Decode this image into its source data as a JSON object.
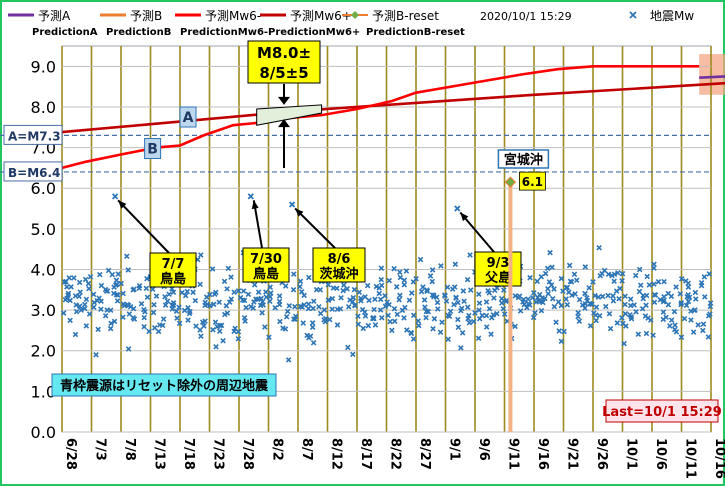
{
  "chart_data": {
    "type": "scatter",
    "x_start": "6/28",
    "x_ticks": [
      "6/28",
      "7/3",
      "7/8",
      "7/13",
      "7/18",
      "7/23",
      "7/28",
      "8/2",
      "8/7",
      "8/12",
      "8/17",
      "8/22",
      "8/27",
      "9/1",
      "9/6",
      "9/11",
      "9/16",
      "9/21",
      "9/26",
      "10/1",
      "10/6",
      "10/11",
      "10/16"
    ],
    "ylim": [
      0,
      9.5
    ],
    "y_ticks": [
      "0.0",
      "1.0",
      "2.0",
      "3.0",
      "4.0",
      "5.0",
      "6.0",
      "7.0",
      "8.0",
      "9.0"
    ],
    "legend": {
      "row1": [
        {
          "label": "予測A",
          "color": "#7030a0",
          "kind": "line"
        },
        {
          "label": "予測B",
          "color": "#ed7d31",
          "kind": "line"
        },
        {
          "label": "予測Mw6-",
          "color": "#ff0000",
          "kind": "line"
        },
        {
          "label": "予測Mw6+",
          "color": "#c00000",
          "kind": "line"
        },
        {
          "label": "予測B-reset",
          "color": "#ed7d31",
          "kind": "diamond"
        },
        {
          "label": "2020/10/1 15:29",
          "color": "",
          "kind": "text"
        },
        {
          "label": "地震Mw",
          "color": "#2e75b6",
          "kind": "cross"
        }
      ],
      "row2": [
        "PredictionA",
        "PredictionB",
        "PredictionMw6-",
        "PredictionMw6+",
        "PredictionB-reset"
      ]
    },
    "h_lines": [
      {
        "label": "A=M7.3",
        "value": 7.3
      },
      {
        "label": "B=M6.4",
        "value": 6.4
      }
    ],
    "series": [
      {
        "name": "予測Mw6+",
        "color": "#c00000",
        "points": [
          [
            0,
            7.38
          ],
          [
            40,
            7.9
          ],
          [
            80,
            8.3
          ],
          [
            120,
            8.65
          ],
          [
            135,
            8.75
          ]
        ]
      },
      {
        "name": "予測Mw6-",
        "color": "#ff0000",
        "points": [
          [
            0,
            6.5
          ],
          [
            4,
            6.65
          ],
          [
            10,
            6.83
          ],
          [
            16,
            7.0
          ],
          [
            20,
            7.05
          ],
          [
            24,
            7.3
          ],
          [
            29,
            7.55
          ],
          [
            34,
            7.62
          ],
          [
            38,
            7.72
          ],
          [
            44,
            7.8
          ],
          [
            50,
            7.95
          ],
          [
            56,
            8.15
          ],
          [
            60,
            8.35
          ],
          [
            66,
            8.5
          ],
          [
            72,
            8.65
          ],
          [
            78,
            8.8
          ],
          [
            84,
            8.93
          ],
          [
            90,
            9.0
          ],
          [
            108,
            9.0
          ]
        ]
      },
      {
        "name": "予測A",
        "color": "#7030a0",
        "points": [
          [
            108,
            8.72
          ],
          [
            135,
            8.92
          ]
        ]
      }
    ],
    "forecast_band": {
      "x": [
        108,
        135
      ],
      "low": 8.3,
      "high": 9.3
    },
    "b_reset": {
      "day": 76,
      "value": 6.15,
      "label": "6.1",
      "place": "宮城沖"
    },
    "annotations": {
      "m8_box": {
        "line1": "M8.0±",
        "line2": "8/5±5",
        "pointer_day": 39
      },
      "point_a": "A",
      "point_b": "B",
      "events": [
        {
          "date": "7/7",
          "place": "鳥島",
          "day": 9,
          "mag": 5.8
        },
        {
          "date": "7/30",
          "place": "鳥島",
          "day": 32,
          "mag": 5.8
        },
        {
          "date": "8/6",
          "place": "茨城沖",
          "day": 39,
          "mag": 5.6
        },
        {
          "date": "9/3",
          "place": "父島",
          "day": 67,
          "mag": 5.5
        }
      ],
      "note_bottom_left": "青枠震源はリセット除外の周辺地震",
      "last_update": "Last=10/1 15:29"
    },
    "scatter_counts": [
      10,
      11,
      12,
      10,
      11,
      9,
      10,
      11,
      12,
      12,
      11,
      10,
      9,
      10,
      11,
      9,
      8,
      10,
      12,
      11,
      10,
      12,
      9,
      11,
      10,
      11,
      12,
      10,
      9,
      11,
      10,
      9,
      10,
      11,
      12,
      9,
      10,
      11,
      9,
      10,
      11,
      12,
      10,
      9,
      11,
      10,
      11,
      9,
      10,
      12,
      11,
      10,
      9,
      10,
      12,
      11,
      9,
      10,
      11,
      10,
      9,
      12,
      11,
      10,
      9,
      10,
      11,
      12,
      10,
      11,
      9,
      10,
      11,
      12,
      10,
      9,
      11,
      10,
      9,
      10,
      11,
      12,
      10,
      9,
      11,
      10,
      11,
      9,
      10,
      12,
      11,
      10,
      9,
      11,
      10,
      12,
      11,
      9,
      10,
      11,
      12,
      9,
      10,
      11,
      10,
      9,
      12,
      11,
      10,
      11
    ]
  }
}
